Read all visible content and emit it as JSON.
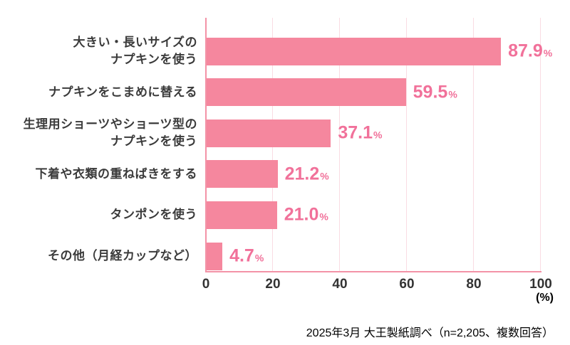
{
  "chart_data": {
    "type": "bar",
    "orientation": "horizontal",
    "title": "",
    "categories": [
      "大きい・長いサイズの\nナプキンを使う",
      "ナプキンをこまめに替える",
      "生理用ショーツやショーツ型の\nナプキンを使う",
      "下着や衣類の重ねばきをする",
      "タンポンを使う",
      "その他（月経カップなど）"
    ],
    "values": [
      87.9,
      59.5,
      37.1,
      21.2,
      21.0,
      4.7
    ],
    "value_suffix": "%",
    "x_ticks": [
      0,
      20,
      40,
      60,
      80,
      100
    ],
    "xlim": [
      0,
      100
    ],
    "x_unit_label": "(%)",
    "legend": "none",
    "grid": "vertical light gridlines at 20% intervals",
    "colors": {
      "bar": "#F5879E",
      "value_label": "#F1719A",
      "axis": "#F393A7",
      "gridline": "#FADCE3",
      "category_text": "#3B3B3B",
      "tick_text": "#333333",
      "background": "#FFFFFF"
    }
  },
  "footer": {
    "source_note": "2025年3月 大王製紙調べ（n=2,205、複数回答）"
  }
}
